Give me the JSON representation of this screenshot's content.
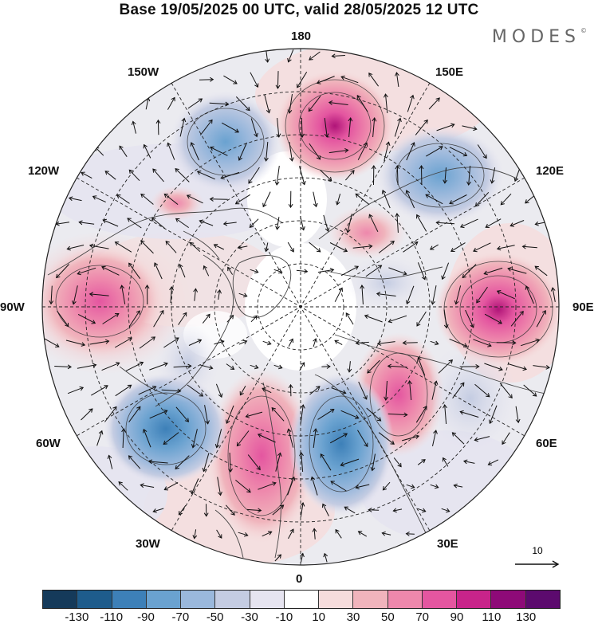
{
  "title": "Base 19/05/2025 00 UTC, valid 28/05/2025 12 UTC",
  "brand": "MODES",
  "brand_mark": "©",
  "longitude_labels": {
    "n180": "180",
    "e150": "150E",
    "e120": "120E",
    "e90": "90E",
    "e60": "60E",
    "e30": "30E",
    "s0": "0",
    "w30": "30W",
    "w60": "60W",
    "w90": "90W",
    "w120": "120W",
    "w150": "150W"
  },
  "reference_vector": {
    "label": "10"
  },
  "colorbar": {
    "colors": [
      "#153a5a",
      "#1e5c8c",
      "#3d80b8",
      "#6aa2d0",
      "#9ab8dc",
      "#c4cce2",
      "#e6e4f0",
      "#ffffff",
      "#f6dcdc",
      "#f0b4bc",
      "#ee88ac",
      "#e456a0",
      "#c8248a",
      "#8e0a78",
      "#5c0a6e"
    ],
    "ticks": [
      "-130",
      "-110",
      "-90",
      "-70",
      "-50",
      "-30",
      "-10",
      "10",
      "30",
      "50",
      "70",
      "90",
      "110",
      "130"
    ]
  },
  "anomaly_centers": [
    {
      "color": "#e456a0",
      "peak": 90,
      "label": "high-near-180"
    },
    {
      "color": "#e456a0",
      "peak": 90,
      "label": "high-near-90E"
    },
    {
      "color": "#ee88ac",
      "peak": 70,
      "label": "high-near-15W"
    },
    {
      "color": "#f0b4bc",
      "peak": 50,
      "label": "high-near-90W"
    },
    {
      "color": "#6aa2d0",
      "peak": -70,
      "label": "low-near-15E"
    },
    {
      "color": "#6aa2d0",
      "peak": -70,
      "label": "low-near-45W"
    },
    {
      "color": "#9ab8dc",
      "peak": -50,
      "label": "low-near-150W"
    },
    {
      "color": "#9ab8dc",
      "peak": -50,
      "label": "low-near-135E"
    }
  ]
}
